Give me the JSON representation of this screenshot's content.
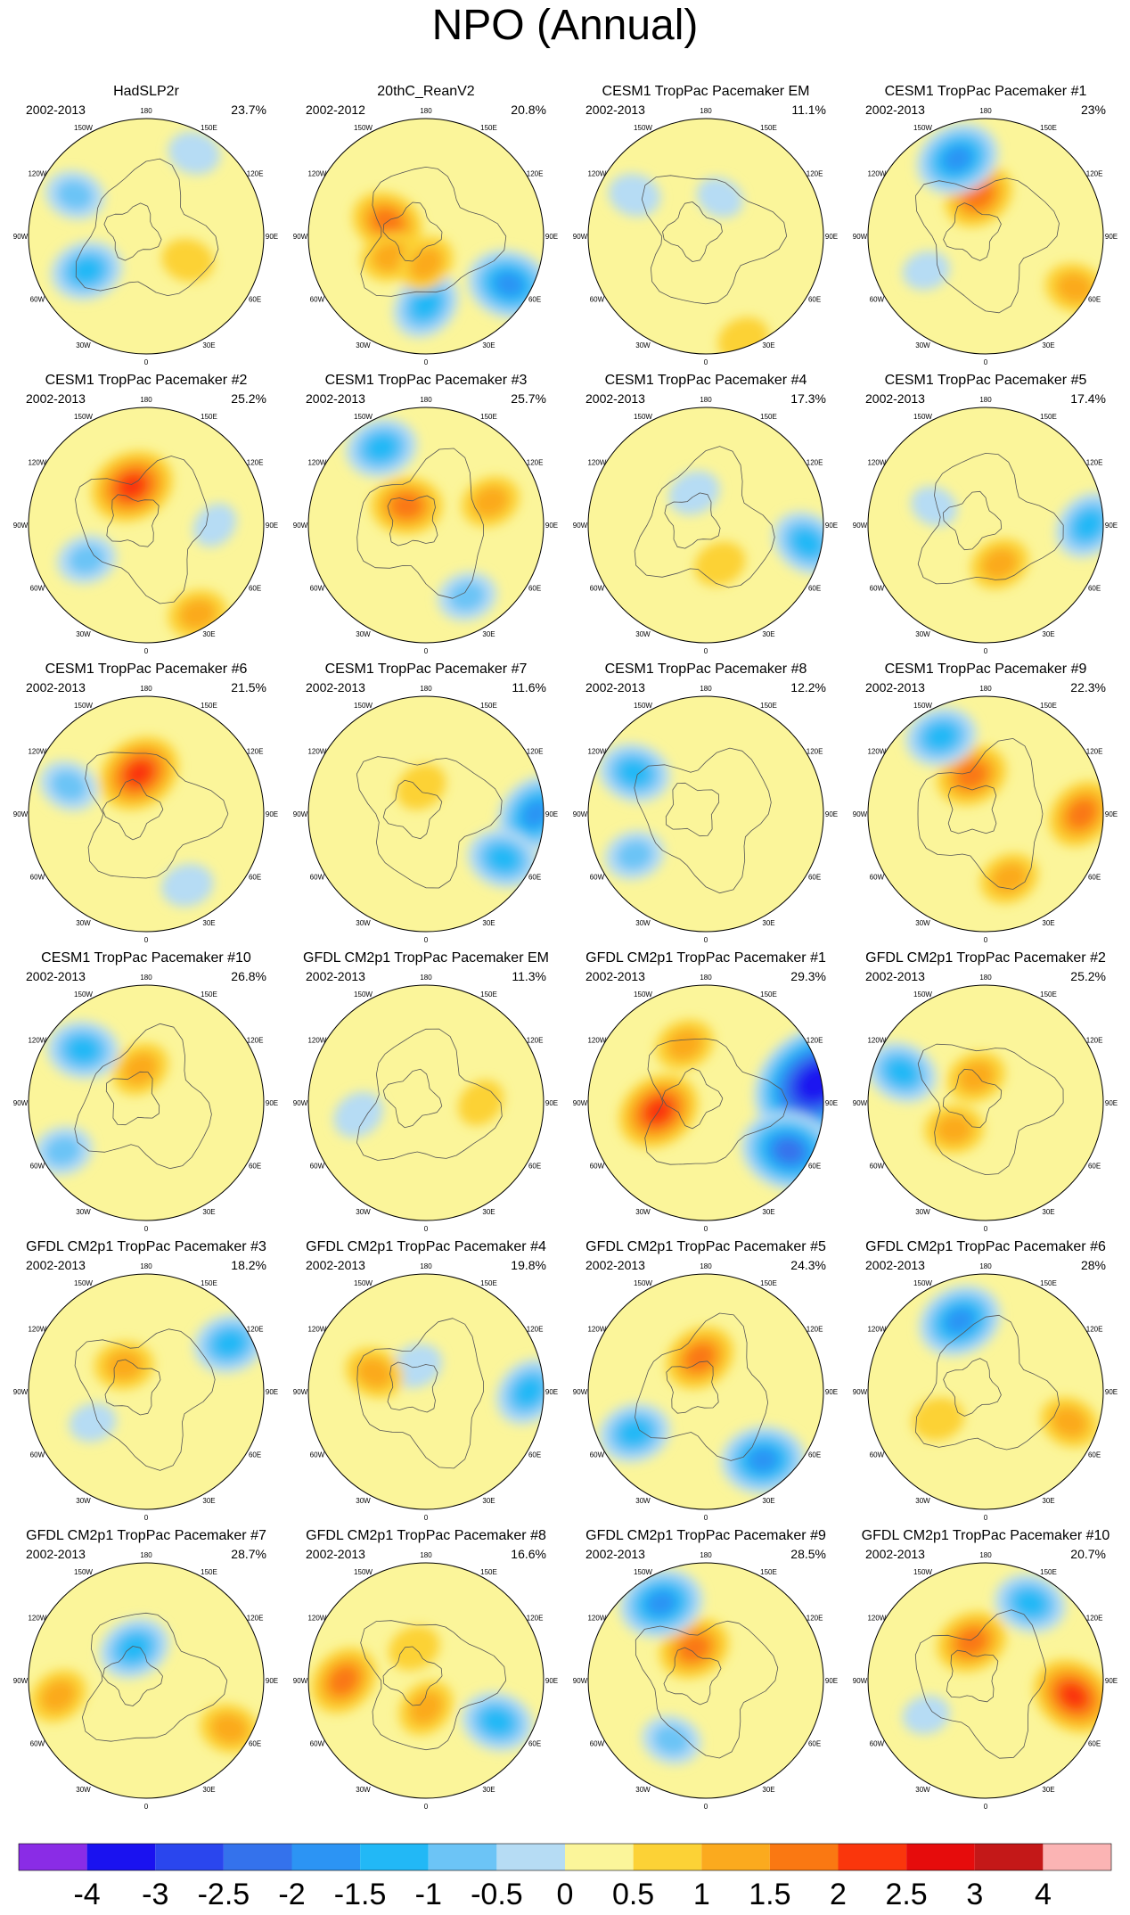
{
  "title": "NPO (Annual)",
  "panels": [
    {
      "title": "HadSLP2r",
      "period": "2002-2013",
      "variance": "23.7%",
      "blobs": [
        {
          "l": 240,
          "r": 30,
          "v": -1.0
        },
        {
          "l": 300,
          "r": 40,
          "v": -1.5
        },
        {
          "l": 60,
          "r": 55,
          "v": 0.7
        },
        {
          "l": 150,
          "r": 20,
          "v": -0.7
        }
      ]
    },
    {
      "title": "20thC_ReanV2",
      "period": "2002-2012",
      "variance": "20.8%",
      "blobs": [
        {
          "l": 60,
          "r": 20,
          "v": -2.0
        },
        {
          "l": 0,
          "r": 40,
          "v": -1.5
        },
        {
          "l": 250,
          "r": 60,
          "v": 1.5
        },
        {
          "l": 300,
          "r": 60,
          "v": 1.0
        },
        {
          "l": 0,
          "r": 70,
          "v": 1.0
        }
      ]
    },
    {
      "title": "CESM1 TropPac Pacemaker EM",
      "period": "2002-2013",
      "variance": "11.1%",
      "blobs": [
        {
          "l": 240,
          "r": 30,
          "v": -0.7
        },
        {
          "l": 20,
          "r": 10,
          "v": 0.7
        },
        {
          "l": 160,
          "r": 60,
          "v": -0.5
        }
      ]
    },
    {
      "title": "CESM1 TropPac Pacemaker #1",
      "period": "2002-2013",
      "variance": "23%",
      "blobs": [
        {
          "l": 190,
          "r": 60,
          "v": 1.5
        },
        {
          "l": 200,
          "r": 30,
          "v": -2.0
        },
        {
          "l": 60,
          "r": 15,
          "v": 1.0
        },
        {
          "l": 300,
          "r": 40,
          "v": -0.5
        }
      ]
    },
    {
      "title": "CESM1 TropPac Pacemaker #2",
      "period": "2002-2013",
      "variance": "25.2%",
      "blobs": [
        {
          "l": 200,
          "r": 60,
          "v": 2.0
        },
        {
          "l": 30,
          "r": 15,
          "v": 1.0
        },
        {
          "l": 90,
          "r": 40,
          "v": -0.5
        },
        {
          "l": 300,
          "r": 40,
          "v": -1.0
        }
      ]
    },
    {
      "title": "CESM1 TropPac Pacemaker #3",
      "period": "2002-2013",
      "variance": "25.7%",
      "blobs": [
        {
          "l": 225,
          "r": 70,
          "v": 1.5
        },
        {
          "l": 210,
          "r": 25,
          "v": -1.5
        },
        {
          "l": 110,
          "r": 40,
          "v": 1.0
        },
        {
          "l": 30,
          "r": 30,
          "v": -1.0
        }
      ]
    },
    {
      "title": "CESM1 TropPac Pacemaker #4",
      "period": "2002-2013",
      "variance": "17.3%",
      "blobs": [
        {
          "l": 200,
          "r": 65,
          "v": -0.7
        },
        {
          "l": 80,
          "r": 15,
          "v": -1.5
        },
        {
          "l": 20,
          "r": 60,
          "v": 0.7
        }
      ]
    },
    {
      "title": "CESM1 TropPac Pacemaker #5",
      "period": "2002-2013",
      "variance": "17.4%",
      "blobs": [
        {
          "l": 90,
          "r": 15,
          "v": -1.5
        },
        {
          "l": 20,
          "r": 60,
          "v": 1.0
        },
        {
          "l": 250,
          "r": 50,
          "v": -0.5
        }
      ]
    },
    {
      "title": "CESM1 TropPac Pacemaker #6",
      "period": "2002-2013",
      "variance": "21.5%",
      "blobs": [
        {
          "l": 190,
          "r": 60,
          "v": 2.0
        },
        {
          "l": 250,
          "r": 30,
          "v": -1.0
        },
        {
          "l": 30,
          "r": 30,
          "v": -0.7
        }
      ]
    },
    {
      "title": "CESM1 TropPac Pacemaker #7",
      "period": "2002-2013",
      "variance": "11.6%",
      "blobs": [
        {
          "l": 90,
          "r": 10,
          "v": -2.0
        },
        {
          "l": 60,
          "r": 25,
          "v": -1.5
        },
        {
          "l": 190,
          "r": 70,
          "v": 0.7
        }
      ]
    },
    {
      "title": "CESM1 TropPac Pacemaker #8",
      "period": "2002-2013",
      "variance": "12.2%",
      "blobs": [
        {
          "l": 240,
          "r": 30,
          "v": -1.5
        },
        {
          "l": 300,
          "r": 30,
          "v": -1.0
        }
      ]
    },
    {
      "title": "CESM1 TropPac Pacemaker #9",
      "period": "2002-2013",
      "variance": "22.3%",
      "blobs": [
        {
          "l": 200,
          "r": 60,
          "v": 1.5
        },
        {
          "l": 210,
          "r": 25,
          "v": -1.5
        },
        {
          "l": 90,
          "r": 20,
          "v": 1.5
        },
        {
          "l": 20,
          "r": 40,
          "v": 1.0
        }
      ]
    },
    {
      "title": "CESM1 TropPac Pacemaker #10",
      "period": "2002-2013",
      "variance": "26.8%",
      "blobs": [
        {
          "l": 190,
          "r": 65,
          "v": 1.0
        },
        {
          "l": 230,
          "r": 30,
          "v": -1.5
        },
        {
          "l": 300,
          "r": 20,
          "v": -1.0
        }
      ]
    },
    {
      "title": "GFDL CM2p1 TropPac Pacemaker EM",
      "period": "2002-2013",
      "variance": "11.3%",
      "blobs": [
        {
          "l": 280,
          "r": 40,
          "v": -0.7
        },
        {
          "l": 90,
          "r": 50,
          "v": 0.6
        }
      ]
    },
    {
      "title": "GFDL CM2p1 TropPac Pacemaker #1",
      "period": "2002-2013",
      "variance": "29.3%",
      "blobs": [
        {
          "l": 100,
          "r": 8,
          "v": -4.0
        },
        {
          "l": 60,
          "r": 20,
          "v": -2.5
        },
        {
          "l": 280,
          "r": 55,
          "v": 2.0
        },
        {
          "l": 200,
          "r": 45,
          "v": 1.0
        }
      ]
    },
    {
      "title": "GFDL CM2p1 TropPac Pacemaker #2",
      "period": "2002-2013",
      "variance": "25.2%",
      "blobs": [
        {
          "l": 200,
          "r": 70,
          "v": 1.0
        },
        {
          "l": 250,
          "r": 25,
          "v": -1.5
        },
        {
          "l": 310,
          "r": 60,
          "v": 1.0
        }
      ]
    },
    {
      "title": "GFDL CM2p1 TropPac Pacemaker #3",
      "period": "2002-2013",
      "variance": "18.2%",
      "blobs": [
        {
          "l": 220,
          "r": 65,
          "v": 1.0
        },
        {
          "l": 120,
          "r": 20,
          "v": -1.5
        },
        {
          "l": 300,
          "r": 45,
          "v": -0.5
        }
      ]
    },
    {
      "title": "GFDL CM2p1 TropPac Pacemaker #4",
      "period": "2002-2013",
      "variance": "19.8%",
      "blobs": [
        {
          "l": 200,
          "r": 70,
          "v": -0.7
        },
        {
          "l": 90,
          "r": 15,
          "v": -1.5
        },
        {
          "l": 250,
          "r": 50,
          "v": 1.0
        }
      ]
    },
    {
      "title": "GFDL CM2p1 TropPac Pacemaker #5",
      "period": "2002-2013",
      "variance": "24.3%",
      "blobs": [
        {
          "l": 190,
          "r": 65,
          "v": 1.5
        },
        {
          "l": 40,
          "r": 25,
          "v": -2.0
        },
        {
          "l": 300,
          "r": 30,
          "v": -1.5
        }
      ]
    },
    {
      "title": "GFDL CM2p1 TropPac Pacemaker #6",
      "period": "2002-2013",
      "variance": "28%",
      "blobs": [
        {
          "l": 200,
          "r": 35,
          "v": -2.0
        },
        {
          "l": 70,
          "r": 25,
          "v": 1.0
        },
        {
          "l": 300,
          "r": 50,
          "v": 0.7
        }
      ]
    },
    {
      "title": "GFDL CM2p1 TropPac Pacemaker #7",
      "period": "2002-2013",
      "variance": "28.7%",
      "blobs": [
        {
          "l": 200,
          "r": 65,
          "v": -1.5
        },
        {
          "l": 60,
          "r": 20,
          "v": 1.0
        },
        {
          "l": 280,
          "r": 25,
          "v": 1.0
        }
      ]
    },
    {
      "title": "GFDL CM2p1 TropPac Pacemaker #8",
      "period": "2002-2013",
      "variance": "16.6%",
      "blobs": [
        {
          "l": 200,
          "r": 65,
          "v": 0.7
        },
        {
          "l": 60,
          "r": 30,
          "v": -1.5
        },
        {
          "l": 270,
          "r": 30,
          "v": 1.5
        },
        {
          "l": 0,
          "r": 70,
          "v": 1.0
        }
      ]
    },
    {
      "title": "GFDL CM2p1 TropPac Pacemaker #9",
      "period": "2002-2013",
      "variance": "28.5%",
      "blobs": [
        {
          "l": 200,
          "r": 65,
          "v": 1.5
        },
        {
          "l": 210,
          "r": 25,
          "v": -2.0
        },
        {
          "l": 330,
          "r": 40,
          "v": -1.0
        }
      ]
    },
    {
      "title": "GFDL CM2p1 TropPac Pacemaker #10",
      "period": "2002-2013",
      "variance": "20.7%",
      "blobs": [
        {
          "l": 200,
          "r": 60,
          "v": 1.5
        },
        {
          "l": 150,
          "r": 25,
          "v": -1.5
        },
        {
          "l": 80,
          "r": 25,
          "v": 2.0
        },
        {
          "l": 300,
          "r": 40,
          "v": -0.5
        }
      ]
    }
  ],
  "lon_labels": [
    "180",
    "150E",
    "120E",
    "90E",
    "60E",
    "30E",
    "0",
    "30W",
    "60W",
    "90W",
    "120W",
    "150W"
  ],
  "colorbar": {
    "ticks": [
      "-4",
      "-3",
      "-2.5",
      "-2",
      "-1.5",
      "-1",
      "-0.5",
      "0",
      "0.5",
      "1",
      "1.5",
      "2",
      "2.5",
      "3",
      "4"
    ],
    "levels": [
      -4,
      -3,
      -2.5,
      -2,
      -1.5,
      -1,
      -0.5,
      0,
      0.5,
      1,
      1.5,
      2,
      2.5,
      3,
      4
    ],
    "colors": [
      "#8a2ce6",
      "#1a12f0",
      "#2a46ee",
      "#3472ec",
      "#2c94f4",
      "#22b8f6",
      "#6cc4f6",
      "#b6dcf4",
      "#fbf59a",
      "#fcd236",
      "#fbaa1e",
      "#fa7812",
      "#fa360c",
      "#e60c0c",
      "#c41818",
      "#fbb4b4"
    ]
  }
}
